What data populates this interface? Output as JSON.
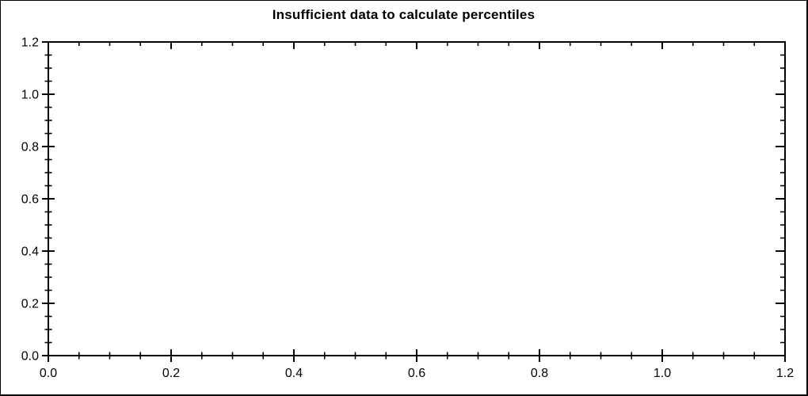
{
  "chart_data": {
    "type": "scatter",
    "title": "Insufficient data to calculate percentiles",
    "series": [],
    "xlabel": "",
    "ylabel": "",
    "xlim": [
      0.0,
      1.2
    ],
    "ylim": [
      0.0,
      1.2
    ],
    "x_ticks": {
      "major_values": [
        0.0,
        0.2,
        0.4,
        0.6,
        0.8,
        1.0,
        1.2
      ],
      "major_labels": [
        "0.0",
        "0.2",
        "0.4",
        "0.6",
        "0.8",
        "1.0",
        "1.2"
      ],
      "minor_step": 0.05
    },
    "y_ticks": {
      "major_values": [
        0.0,
        0.2,
        0.4,
        0.6,
        0.8,
        1.0,
        1.2
      ],
      "major_labels": [
        "0.0",
        "0.2",
        "0.4",
        "0.6",
        "0.8",
        "1.0",
        "1.2"
      ],
      "minor_step": 0.05
    },
    "grid": false,
    "legend": "none",
    "axes_box": true,
    "colors": {
      "background": "#ffffff",
      "axis": "#000000",
      "text": "#000000",
      "frame_border": "#000000"
    }
  }
}
